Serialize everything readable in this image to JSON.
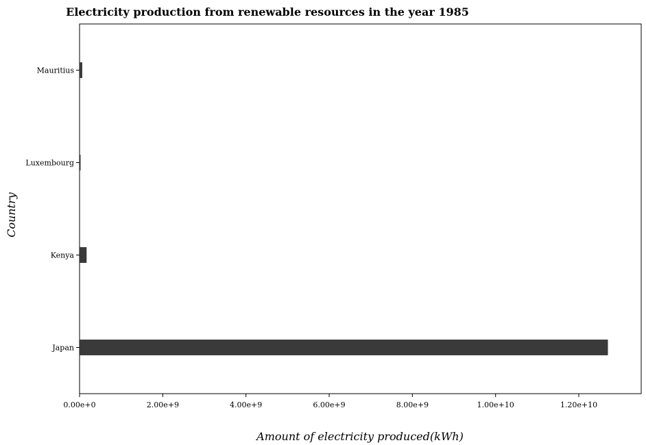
{
  "chart_data": {
    "type": "bar",
    "orientation": "horizontal",
    "title": "Electricity production from renewable resources in the year 1985",
    "xlabel": "Amount of electricity produced(kWh)",
    "ylabel": "Country",
    "categories": [
      "Japan",
      "Kenya",
      "Luxembourg",
      "Mauritius"
    ],
    "values": [
      12700000000,
      170000000,
      25000000,
      65000000
    ],
    "xlim": [
      0,
      13500000000
    ],
    "xticks": [
      0,
      2000000000,
      4000000000,
      6000000000,
      8000000000,
      10000000000,
      12000000000
    ],
    "xtick_labels": [
      "0.00e+0",
      "2.00e+9",
      "4.00e+9",
      "6.00e+9",
      "8.00e+9",
      "1.00e+10",
      "1.20e+10"
    ],
    "grid": false,
    "bar_color": "#3a3a3a"
  }
}
